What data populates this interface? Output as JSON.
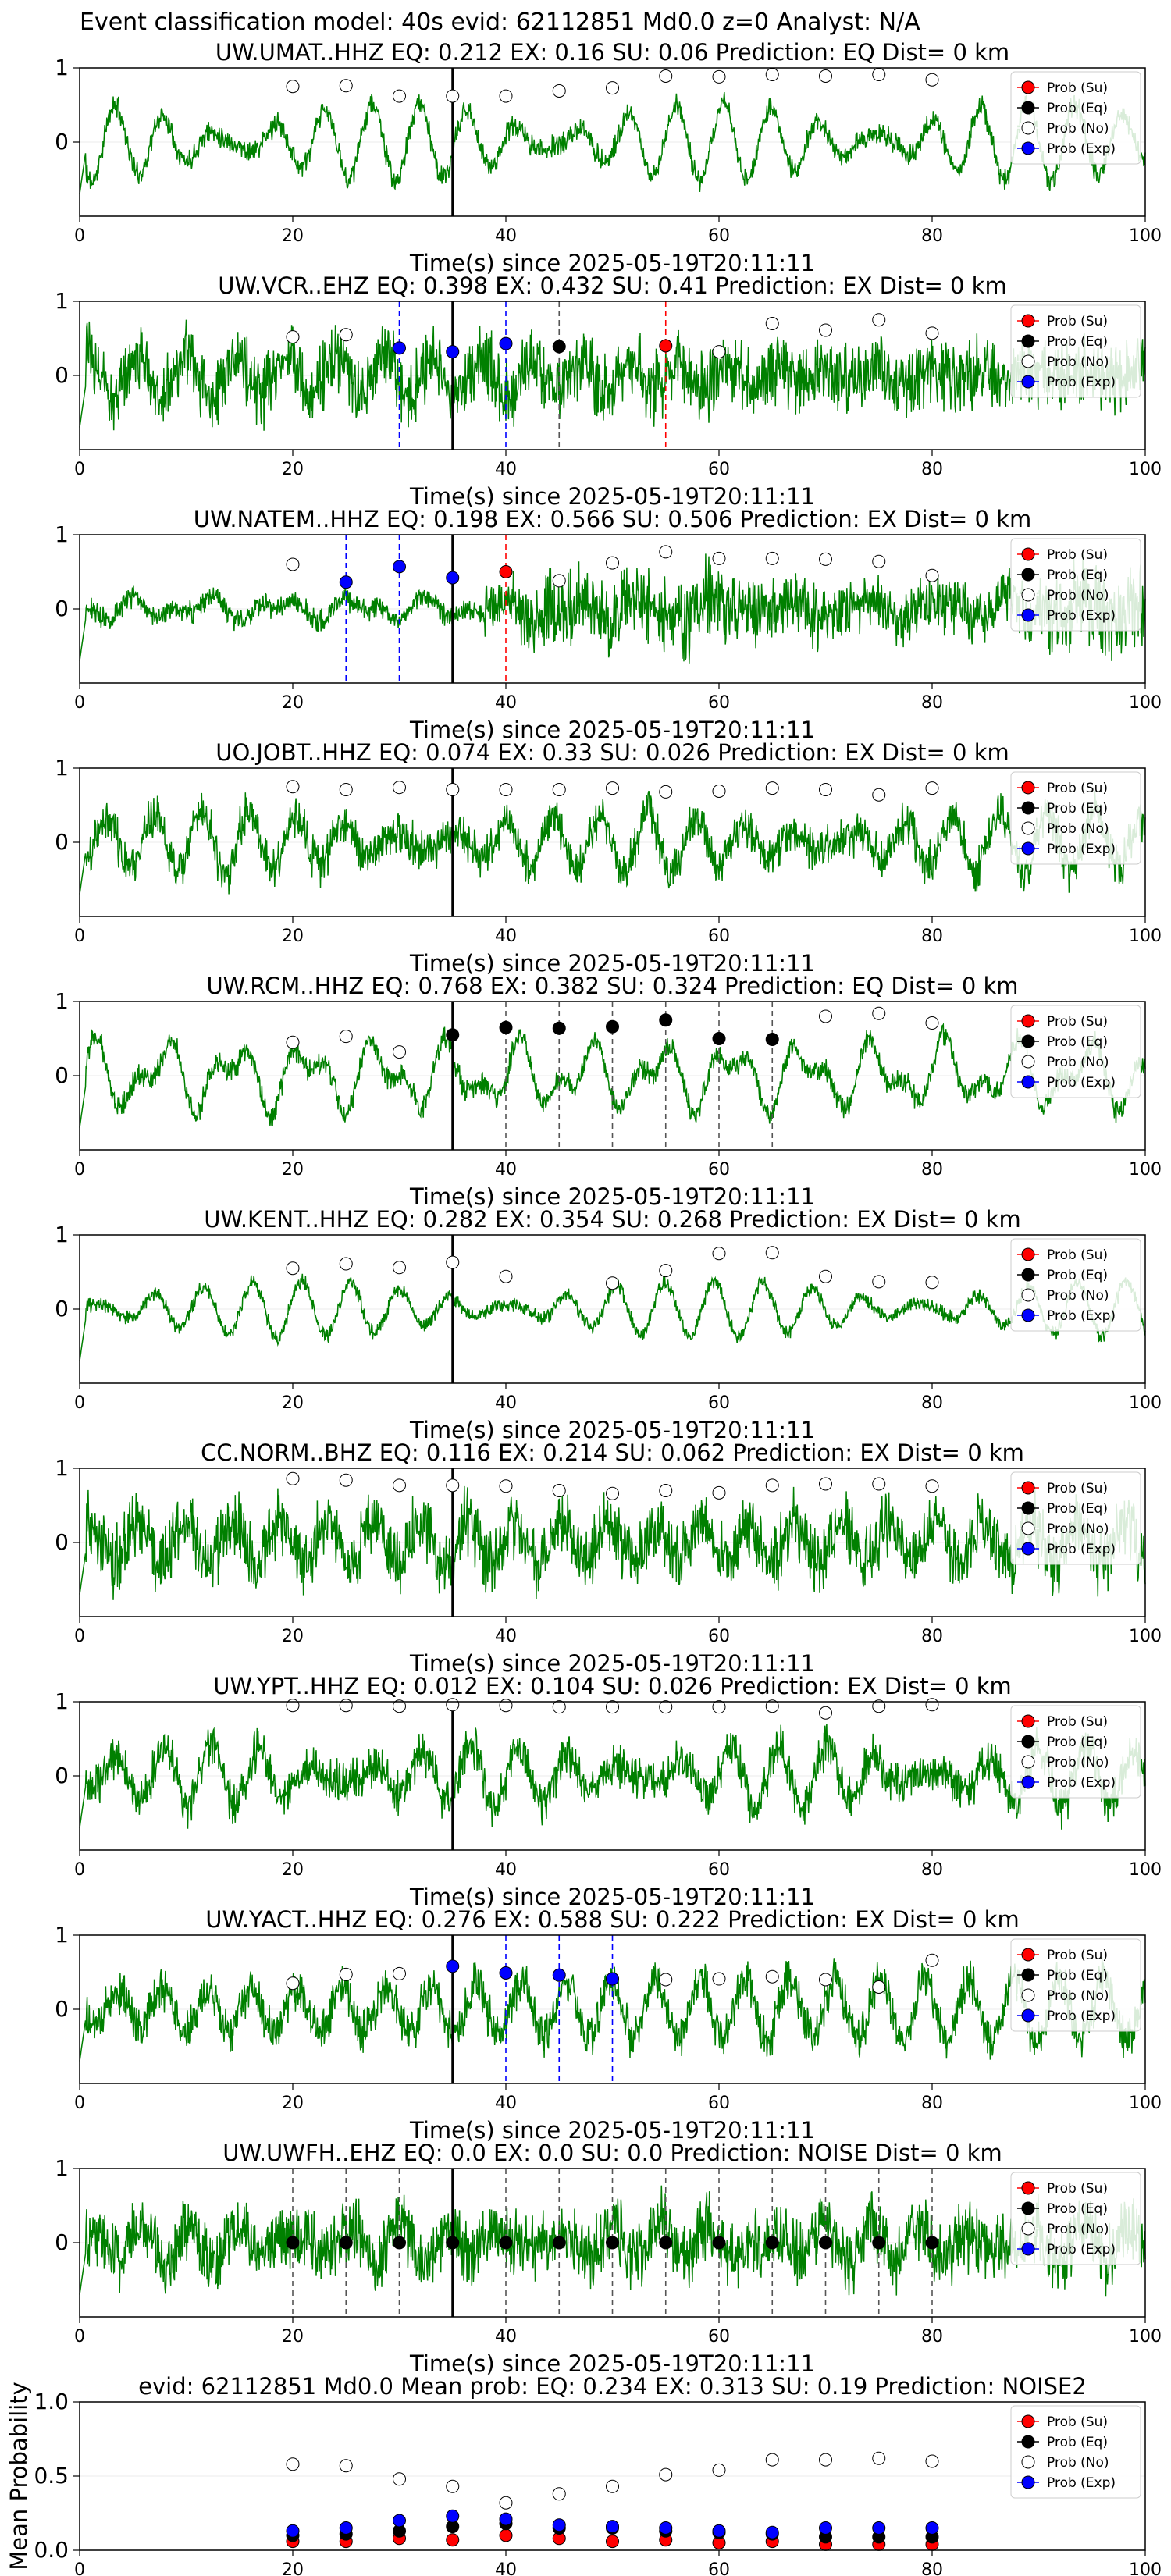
{
  "suptitle": "Event classification model: 40s evid: 62112851 Md0.0 z=0 Analyst: N/A",
  "colors": {
    "waveform": "#008000",
    "su": "#ff0000",
    "eq": "#000000",
    "no": "#ffffff",
    "exp": "#0000ff",
    "pick": "#000000"
  },
  "legend": [
    "Prob (Su)",
    "Prob (Eq)",
    "Prob (No)",
    "Prob (Exp)"
  ],
  "chart_data": [
    {
      "type": "line",
      "station": "UW.UMAT..HHZ",
      "title": "UW.UMAT..HHZ   EQ: 0.212  EX: 0.16  SU: 0.06    Prediction: EQ    Dist= 0 km",
      "xlabel": "Time(s) since 2025-05-19T20:11:11",
      "xlim": [
        0,
        100
      ],
      "ylim": [
        -1,
        1
      ],
      "xticks": [
        0,
        20,
        40,
        60,
        80,
        100
      ],
      "yticks": [
        0,
        1
      ],
      "pick_time": 35,
      "waveform_style": "smooth",
      "seed": 11,
      "points": [
        {
          "t": 20,
          "p": 0.75,
          "cls": "no"
        },
        {
          "t": 25,
          "p": 0.76,
          "cls": "no"
        },
        {
          "t": 30,
          "p": 0.62,
          "cls": "no"
        },
        {
          "t": 35,
          "p": 0.62,
          "cls": "no"
        },
        {
          "t": 40,
          "p": 0.62,
          "cls": "no"
        },
        {
          "t": 45,
          "p": 0.69,
          "cls": "no"
        },
        {
          "t": 50,
          "p": 0.73,
          "cls": "no"
        },
        {
          "t": 55,
          "p": 0.89,
          "cls": "no"
        },
        {
          "t": 60,
          "p": 0.88,
          "cls": "no"
        },
        {
          "t": 65,
          "p": 0.91,
          "cls": "no"
        },
        {
          "t": 70,
          "p": 0.89,
          "cls": "no"
        },
        {
          "t": 75,
          "p": 0.91,
          "cls": "no"
        },
        {
          "t": 80,
          "p": 0.84,
          "cls": "no"
        }
      ]
    },
    {
      "type": "line",
      "station": "UW.VCR..EHZ",
      "title": "UW.VCR..EHZ   EQ: 0.398  EX: 0.432  SU: 0.41   Prediction: EX    Dist= 0 km",
      "xlabel": "Time(s) since 2025-05-19T20:11:11",
      "xlim": [
        0,
        100
      ],
      "ylim": [
        -1,
        1
      ],
      "xticks": [
        0,
        20,
        40,
        60,
        80,
        100
      ],
      "yticks": [
        0,
        1
      ],
      "pick_time": 35,
      "waveform_style": "noisy",
      "seed": 23,
      "points": [
        {
          "t": 20,
          "p": 0.52,
          "cls": "no"
        },
        {
          "t": 25,
          "p": 0.55,
          "cls": "no"
        },
        {
          "t": 30,
          "p": 0.37,
          "cls": "exp"
        },
        {
          "t": 35,
          "p": 0.32,
          "cls": "exp"
        },
        {
          "t": 40,
          "p": 0.43,
          "cls": "exp"
        },
        {
          "t": 45,
          "p": 0.39,
          "cls": "eq"
        },
        {
          "t": 55,
          "p": 0.4,
          "cls": "su"
        },
        {
          "t": 60,
          "p": 0.32,
          "cls": "no"
        },
        {
          "t": 65,
          "p": 0.7,
          "cls": "no"
        },
        {
          "t": 70,
          "p": 0.61,
          "cls": "no"
        },
        {
          "t": 75,
          "p": 0.75,
          "cls": "no"
        },
        {
          "t": 80,
          "p": 0.57,
          "cls": "no"
        }
      ]
    },
    {
      "type": "line",
      "station": "UW.NATEM..HHZ",
      "title": "UW.NATEM..HHZ   EQ: 0.198  EX: 0.566  SU: 0.506   Prediction: EX    Dist= 0 km",
      "xlabel": "Time(s) since 2025-05-19T20:11:11",
      "xlim": [
        0,
        100
      ],
      "ylim": [
        -1,
        1
      ],
      "xticks": [
        0,
        20,
        40,
        60,
        80,
        100
      ],
      "yticks": [
        0,
        1
      ],
      "pick_time": 35,
      "waveform_style": "growing",
      "seed": 37,
      "points": [
        {
          "t": 20,
          "p": 0.6,
          "cls": "no"
        },
        {
          "t": 25,
          "p": 0.36,
          "cls": "exp"
        },
        {
          "t": 30,
          "p": 0.57,
          "cls": "exp"
        },
        {
          "t": 35,
          "p": 0.42,
          "cls": "exp"
        },
        {
          "t": 40,
          "p": 0.5,
          "cls": "su"
        },
        {
          "t": 45,
          "p": 0.38,
          "cls": "no"
        },
        {
          "t": 50,
          "p": 0.62,
          "cls": "no"
        },
        {
          "t": 55,
          "p": 0.77,
          "cls": "no"
        },
        {
          "t": 60,
          "p": 0.68,
          "cls": "no"
        },
        {
          "t": 65,
          "p": 0.68,
          "cls": "no"
        },
        {
          "t": 70,
          "p": 0.67,
          "cls": "no"
        },
        {
          "t": 75,
          "p": 0.64,
          "cls": "no"
        },
        {
          "t": 80,
          "p": 0.45,
          "cls": "no"
        }
      ]
    },
    {
      "type": "line",
      "station": "UO.JOBT..HHZ",
      "title": "UO.JOBT..HHZ   EQ: 0.074  EX: 0.33  SU: 0.026   Prediction: EX    Dist= 0 km",
      "xlabel": "Time(s) since 2025-05-19T20:11:11",
      "xlim": [
        0,
        100
      ],
      "ylim": [
        -1,
        1
      ],
      "xticks": [
        0,
        20,
        40,
        60,
        80,
        100
      ],
      "yticks": [
        0,
        1
      ],
      "pick_time": 35,
      "waveform_style": "mixed",
      "seed": 41,
      "points": [
        {
          "t": 20,
          "p": 0.75,
          "cls": "no"
        },
        {
          "t": 25,
          "p": 0.71,
          "cls": "no"
        },
        {
          "t": 30,
          "p": 0.74,
          "cls": "no"
        },
        {
          "t": 35,
          "p": 0.71,
          "cls": "no"
        },
        {
          "t": 40,
          "p": 0.71,
          "cls": "no"
        },
        {
          "t": 45,
          "p": 0.71,
          "cls": "no"
        },
        {
          "t": 50,
          "p": 0.73,
          "cls": "no"
        },
        {
          "t": 55,
          "p": 0.68,
          "cls": "no"
        },
        {
          "t": 60,
          "p": 0.69,
          "cls": "no"
        },
        {
          "t": 65,
          "p": 0.73,
          "cls": "no"
        },
        {
          "t": 70,
          "p": 0.71,
          "cls": "no"
        },
        {
          "t": 75,
          "p": 0.64,
          "cls": "no"
        },
        {
          "t": 80,
          "p": 0.73,
          "cls": "no"
        }
      ]
    },
    {
      "type": "line",
      "station": "UW.RCM..HHZ",
      "title": "UW.RCM..HHZ   EQ: 0.768  EX: 0.382  SU: 0.324   Prediction: EQ    Dist= 0 km",
      "xlabel": "Time(s) since 2025-05-19T20:11:11",
      "xlim": [
        0,
        100
      ],
      "ylim": [
        -1,
        1
      ],
      "xticks": [
        0,
        20,
        40,
        60,
        80,
        100
      ],
      "yticks": [
        0,
        1
      ],
      "pick_time": 35,
      "waveform_style": "smooth",
      "seed": 53,
      "points": [
        {
          "t": 20,
          "p": 0.45,
          "cls": "no"
        },
        {
          "t": 25,
          "p": 0.53,
          "cls": "no"
        },
        {
          "t": 30,
          "p": 0.32,
          "cls": "no"
        },
        {
          "t": 35,
          "p": 0.55,
          "cls": "eq"
        },
        {
          "t": 40,
          "p": 0.65,
          "cls": "eq"
        },
        {
          "t": 45,
          "p": 0.64,
          "cls": "eq"
        },
        {
          "t": 50,
          "p": 0.66,
          "cls": "eq"
        },
        {
          "t": 55,
          "p": 0.75,
          "cls": "eq"
        },
        {
          "t": 60,
          "p": 0.5,
          "cls": "eq"
        },
        {
          "t": 65,
          "p": 0.49,
          "cls": "eq"
        },
        {
          "t": 70,
          "p": 0.8,
          "cls": "no"
        },
        {
          "t": 75,
          "p": 0.84,
          "cls": "no"
        },
        {
          "t": 80,
          "p": 0.71,
          "cls": "no"
        }
      ]
    },
    {
      "type": "line",
      "station": "UW.KENT..HHZ",
      "title": "UW.KENT..HHZ   EQ: 0.282  EX: 0.354  SU: 0.268   Prediction: EX    Dist= 0 km",
      "xlabel": "Time(s) since 2025-05-19T20:11:11",
      "xlim": [
        0,
        100
      ],
      "ylim": [
        -1,
        1
      ],
      "xticks": [
        0,
        20,
        40,
        60,
        80,
        100
      ],
      "yticks": [
        0,
        1
      ],
      "pick_time": 35,
      "waveform_style": "calm",
      "seed": 67,
      "points": [
        {
          "t": 20,
          "p": 0.55,
          "cls": "no"
        },
        {
          "t": 25,
          "p": 0.61,
          "cls": "no"
        },
        {
          "t": 30,
          "p": 0.56,
          "cls": "no"
        },
        {
          "t": 35,
          "p": 0.63,
          "cls": "no"
        },
        {
          "t": 40,
          "p": 0.44,
          "cls": "no"
        },
        {
          "t": 50,
          "p": 0.35,
          "cls": "no"
        },
        {
          "t": 55,
          "p": 0.52,
          "cls": "no"
        },
        {
          "t": 60,
          "p": 0.75,
          "cls": "no"
        },
        {
          "t": 65,
          "p": 0.76,
          "cls": "no"
        },
        {
          "t": 70,
          "p": 0.44,
          "cls": "no"
        },
        {
          "t": 75,
          "p": 0.37,
          "cls": "no"
        },
        {
          "t": 80,
          "p": 0.36,
          "cls": "no"
        }
      ]
    },
    {
      "type": "line",
      "station": "CC.NORM..BHZ",
      "title": "CC.NORM..BHZ   EQ: 0.116  EX: 0.214  SU: 0.062   Prediction: EX    Dist= 0 km",
      "xlabel": "Time(s) since 2025-05-19T20:11:11",
      "xlim": [
        0,
        100
      ],
      "ylim": [
        -1,
        1
      ],
      "xticks": [
        0,
        20,
        40,
        60,
        80,
        100
      ],
      "yticks": [
        0,
        1
      ],
      "pick_time": 35,
      "waveform_style": "noisy",
      "seed": 79,
      "points": [
        {
          "t": 20,
          "p": 0.86,
          "cls": "no"
        },
        {
          "t": 25,
          "p": 0.84,
          "cls": "no"
        },
        {
          "t": 30,
          "p": 0.77,
          "cls": "no"
        },
        {
          "t": 35,
          "p": 0.77,
          "cls": "no"
        },
        {
          "t": 40,
          "p": 0.76,
          "cls": "no"
        },
        {
          "t": 45,
          "p": 0.7,
          "cls": "no"
        },
        {
          "t": 50,
          "p": 0.66,
          "cls": "no"
        },
        {
          "t": 55,
          "p": 0.7,
          "cls": "no"
        },
        {
          "t": 60,
          "p": 0.67,
          "cls": "no"
        },
        {
          "t": 65,
          "p": 0.77,
          "cls": "no"
        },
        {
          "t": 70,
          "p": 0.79,
          "cls": "no"
        },
        {
          "t": 75,
          "p": 0.79,
          "cls": "no"
        },
        {
          "t": 80,
          "p": 0.76,
          "cls": "no"
        }
      ]
    },
    {
      "type": "line",
      "station": "UW.YPT..HHZ",
      "title": "UW.YPT..HHZ   EQ: 0.012  EX: 0.104  SU: 0.026   Prediction: EX    Dist= 0 km",
      "xlabel": "Time(s) since 2025-05-19T20:11:11",
      "xlim": [
        0,
        100
      ],
      "ylim": [
        -1,
        1
      ],
      "xticks": [
        0,
        20,
        40,
        60,
        80,
        100
      ],
      "yticks": [
        0,
        1
      ],
      "pick_time": 35,
      "waveform_style": "mixed",
      "seed": 83,
      "points": [
        {
          "t": 20,
          "p": 0.95,
          "cls": "no"
        },
        {
          "t": 25,
          "p": 0.95,
          "cls": "no"
        },
        {
          "t": 30,
          "p": 0.94,
          "cls": "no"
        },
        {
          "t": 35,
          "p": 0.96,
          "cls": "no"
        },
        {
          "t": 40,
          "p": 0.95,
          "cls": "no"
        },
        {
          "t": 45,
          "p": 0.93,
          "cls": "no"
        },
        {
          "t": 50,
          "p": 0.93,
          "cls": "no"
        },
        {
          "t": 55,
          "p": 0.93,
          "cls": "no"
        },
        {
          "t": 60,
          "p": 0.93,
          "cls": "no"
        },
        {
          "t": 65,
          "p": 0.94,
          "cls": "no"
        },
        {
          "t": 70,
          "p": 0.85,
          "cls": "no"
        },
        {
          "t": 75,
          "p": 0.94,
          "cls": "no"
        },
        {
          "t": 80,
          "p": 0.96,
          "cls": "no"
        }
      ]
    },
    {
      "type": "line",
      "station": "UW.YACT..HHZ",
      "title": "UW.YACT..HHZ   EQ: 0.276  EX: 0.588  SU: 0.222   Prediction: EX    Dist= 0 km",
      "xlabel": "Time(s) since 2025-05-19T20:11:11",
      "xlim": [
        0,
        100
      ],
      "ylim": [
        -1,
        1
      ],
      "xticks": [
        0,
        20,
        40,
        60,
        80,
        100
      ],
      "yticks": [
        0,
        1
      ],
      "pick_time": 35,
      "waveform_style": "mixed",
      "seed": 97,
      "points": [
        {
          "t": 20,
          "p": 0.35,
          "cls": "no"
        },
        {
          "t": 25,
          "p": 0.47,
          "cls": "no"
        },
        {
          "t": 30,
          "p": 0.48,
          "cls": "no"
        },
        {
          "t": 35,
          "p": 0.58,
          "cls": "exp"
        },
        {
          "t": 40,
          "p": 0.49,
          "cls": "exp"
        },
        {
          "t": 45,
          "p": 0.46,
          "cls": "exp"
        },
        {
          "t": 50,
          "p": 0.41,
          "cls": "exp"
        },
        {
          "t": 55,
          "p": 0.4,
          "cls": "no"
        },
        {
          "t": 60,
          "p": 0.41,
          "cls": "no"
        },
        {
          "t": 65,
          "p": 0.44,
          "cls": "no"
        },
        {
          "t": 70,
          "p": 0.4,
          "cls": "no"
        },
        {
          "t": 75,
          "p": 0.3,
          "cls": "no"
        },
        {
          "t": 80,
          "p": 0.66,
          "cls": "no"
        }
      ]
    },
    {
      "type": "line",
      "station": "UW.UWFH..EHZ",
      "title": "UW.UWFH..EHZ   EQ: 0.0  EX: 0.0  SU: 0.0   Prediction: NOISE    Dist= 0 km",
      "xlabel": "Time(s) since 2025-05-19T20:11:11",
      "xlim": [
        0,
        100
      ],
      "ylim": [
        -1,
        1
      ],
      "xticks": [
        0,
        20,
        40,
        60,
        80,
        100
      ],
      "yticks": [
        0,
        1
      ],
      "pick_time": 35,
      "waveform_style": "noisy",
      "seed": 101,
      "points": [
        {
          "t": 20,
          "p": 0.0,
          "cls": "eq"
        },
        {
          "t": 25,
          "p": 0.0,
          "cls": "eq"
        },
        {
          "t": 30,
          "p": 0.0,
          "cls": "eq"
        },
        {
          "t": 35,
          "p": 0.0,
          "cls": "eq"
        },
        {
          "t": 40,
          "p": 0.0,
          "cls": "eq"
        },
        {
          "t": 45,
          "p": 0.0,
          "cls": "eq"
        },
        {
          "t": 50,
          "p": 0.0,
          "cls": "eq"
        },
        {
          "t": 55,
          "p": 0.0,
          "cls": "eq"
        },
        {
          "t": 60,
          "p": 0.0,
          "cls": "eq"
        },
        {
          "t": 65,
          "p": 0.0,
          "cls": "eq"
        },
        {
          "t": 70,
          "p": 0.0,
          "cls": "eq"
        },
        {
          "t": 75,
          "p": 0.0,
          "cls": "eq"
        },
        {
          "t": 80,
          "p": 0.0,
          "cls": "eq"
        }
      ]
    },
    {
      "type": "scatter",
      "station": "mean",
      "title": "evid: 62112851  Md0.0   Mean prob:   EQ: 0.234  EX: 0.313  SU: 0.19   Prediction: NOISE2",
      "ylabel": "Mean Probability",
      "xlim": [
        0,
        100
      ],
      "ylim": [
        0,
        1
      ],
      "xticks": [
        0,
        20,
        40,
        60,
        80,
        100
      ],
      "yticks": [
        0.0,
        0.5,
        1.0
      ],
      "x": [
        20,
        25,
        30,
        35,
        40,
        45,
        50,
        55,
        60,
        65,
        70,
        75,
        80
      ],
      "series": [
        {
          "name": "Prob (Su)",
          "cls": "su",
          "values": [
            0.06,
            0.06,
            0.08,
            0.07,
            0.1,
            0.08,
            0.06,
            0.07,
            0.05,
            0.06,
            0.04,
            0.04,
            0.04
          ]
        },
        {
          "name": "Prob (Eq)",
          "cls": "eq",
          "values": [
            0.1,
            0.11,
            0.13,
            0.16,
            0.18,
            0.15,
            0.15,
            0.13,
            0.12,
            0.11,
            0.09,
            0.09,
            0.09
          ]
        },
        {
          "name": "Prob (No)",
          "cls": "no",
          "values": [
            0.58,
            0.57,
            0.48,
            0.43,
            0.32,
            0.38,
            0.43,
            0.51,
            0.54,
            0.61,
            0.61,
            0.62,
            0.6
          ]
        },
        {
          "name": "Prob (Exp)",
          "cls": "exp",
          "values": [
            0.13,
            0.15,
            0.2,
            0.23,
            0.21,
            0.17,
            0.16,
            0.15,
            0.13,
            0.12,
            0.15,
            0.15,
            0.15
          ]
        }
      ]
    }
  ]
}
